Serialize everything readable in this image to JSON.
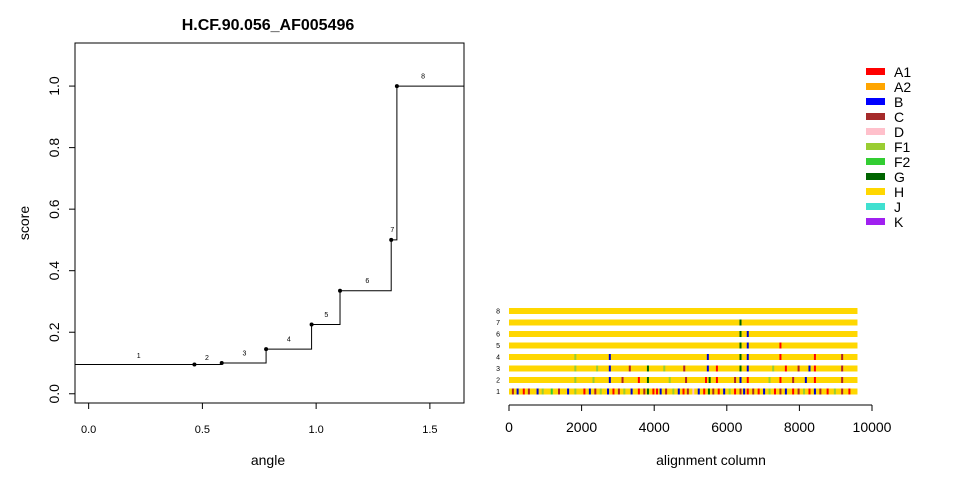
{
  "chart_data": [
    {
      "type": "line",
      "title": "H.CF.90.056_AF005496",
      "xlabel": "angle",
      "ylabel": "score",
      "xlim": [
        -0.06,
        1.65
      ],
      "ylim": [
        -0.03,
        1.14
      ],
      "x_ticks": [
        0.0,
        0.5,
        1.0,
        1.5
      ],
      "x_tick_labels": [
        "0.0",
        "0.5",
        "1.0",
        "1.5"
      ],
      "y_ticks": [
        0.0,
        0.2,
        0.4,
        0.6,
        0.8,
        1.0
      ],
      "y_tick_labels": [
        "0.0",
        "0.2",
        "0.4",
        "0.6",
        "0.8",
        "1.0"
      ],
      "grid": false,
      "points": [
        {
          "label": "1",
          "x": 0.0,
          "y": 0.095,
          "label_x": 0.22,
          "label_y": 0.116
        },
        {
          "label": "2",
          "x": 0.465,
          "y": 0.095,
          "label_x": 0.52,
          "label_y": 0.11
        },
        {
          "label": "3",
          "x": 0.585,
          "y": 0.1,
          "label_x": 0.685,
          "label_y": 0.125
        },
        {
          "label": "4",
          "x": 0.78,
          "y": 0.145,
          "label_x": 0.88,
          "label_y": 0.17
        },
        {
          "label": "5",
          "x": 0.98,
          "y": 0.225,
          "label_x": 1.045,
          "label_y": 0.25
        },
        {
          "label": "6",
          "x": 1.105,
          "y": 0.335,
          "label_x": 1.225,
          "label_y": 0.36
        },
        {
          "label": "7",
          "x": 1.33,
          "y": 0.5,
          "label_x": 1.335,
          "label_y": 0.525
        },
        {
          "label": "8",
          "x": 1.355,
          "y": 1.0,
          "label_x": 1.47,
          "label_y": 1.025
        }
      ],
      "marked_points": [
        2,
        3,
        4,
        5,
        6,
        7,
        8
      ],
      "x_end": 1.65
    },
    {
      "type": "bar",
      "xlabel": "alignment column",
      "xlim": [
        0,
        10000
      ],
      "x_ticks": [
        0,
        2000,
        4000,
        6000,
        8000,
        10000
      ],
      "x_tick_labels": [
        "0",
        "2000",
        "4000",
        "6000",
        "8000",
        "10000"
      ],
      "alignment_length": 9600,
      "base_color": "#FFD700",
      "rows": [
        {
          "label": "1",
          "marks": [
            [
              80,
              "#B22222"
            ],
            [
              210,
              "#0000CD"
            ],
            [
              380,
              "#FF0000"
            ],
            [
              520,
              "#B22222"
            ],
            [
              760,
              "#0000CD"
            ],
            [
              900,
              "#9ACD32"
            ],
            [
              1150,
              "#32CD32"
            ],
            [
              1350,
              "#B22222"
            ],
            [
              1600,
              "#0000CD"
            ],
            [
              1800,
              "#9ACD32"
            ],
            [
              2050,
              "#FF0000"
            ],
            [
              2200,
              "#0000CD"
            ],
            [
              2350,
              "#B22222"
            ],
            [
              2500,
              "#9ACD32"
            ],
            [
              2700,
              "#0000CD"
            ],
            [
              2850,
              "#FF0000"
            ],
            [
              3000,
              "#B22222"
            ],
            [
              3150,
              "#9ACD32"
            ],
            [
              3350,
              "#0000CD"
            ],
            [
              3550,
              "#FF0000"
            ],
            [
              3700,
              "#B22222"
            ],
            [
              3800,
              "#006400"
            ],
            [
              3950,
              "#FF0000"
            ],
            [
              4050,
              "#FF0000"
            ],
            [
              4150,
              "#0000CD"
            ],
            [
              4300,
              "#B22222"
            ],
            [
              4500,
              "#9ACD32"
            ],
            [
              4650,
              "#0000CD"
            ],
            [
              4780,
              "#FF0000"
            ],
            [
              4900,
              "#B22222"
            ],
            [
              5050,
              "#FFC0CB"
            ],
            [
              5200,
              "#0000CD"
            ],
            [
              5350,
              "#FF0000"
            ],
            [
              5480,
              "#006400"
            ],
            [
              5600,
              "#B22222"
            ],
            [
              5750,
              "#FF0000"
            ],
            [
              5900,
              "#0000CD"
            ],
            [
              6050,
              "#9ACD32"
            ],
            [
              6200,
              "#FF0000"
            ],
            [
              6350,
              "#B22222"
            ],
            [
              6450,
              "#0000CD"
            ],
            [
              6550,
              "#FF0000"
            ],
            [
              6700,
              "#B22222"
            ],
            [
              6850,
              "#FF0000"
            ],
            [
              7000,
              "#0000CD"
            ],
            [
              7150,
              "#9ACD32"
            ],
            [
              7300,
              "#FF0000"
            ],
            [
              7450,
              "#B22222"
            ],
            [
              7600,
              "#0000CD"
            ],
            [
              7800,
              "#FF0000"
            ],
            [
              7950,
              "#B22222"
            ],
            [
              8100,
              "#9ACD32"
            ],
            [
              8250,
              "#FF0000"
            ],
            [
              8400,
              "#0000CD"
            ],
            [
              8550,
              "#B22222"
            ],
            [
              8750,
              "#FF0000"
            ],
            [
              8950,
              "#9ACD32"
            ],
            [
              9150,
              "#B22222"
            ],
            [
              9350,
              "#FF0000"
            ]
          ]
        },
        {
          "label": "2",
          "marks": [
            [
              1800,
              "#9ACD32"
            ],
            [
              2300,
              "#9ACD32"
            ],
            [
              2750,
              "#0000CD"
            ],
            [
              3100,
              "#B22222"
            ],
            [
              3550,
              "#FF0000"
            ],
            [
              3800,
              "#006400"
            ],
            [
              4400,
              "#9ACD32"
            ],
            [
              4850,
              "#B22222"
            ],
            [
              5400,
              "#FF0000"
            ],
            [
              5500,
              "#006400"
            ],
            [
              5700,
              "#FF0000"
            ],
            [
              6200,
              "#B22222"
            ],
            [
              6350,
              "#0000CD"
            ],
            [
              6550,
              "#FF0000"
            ],
            [
              7150,
              "#9ACD32"
            ],
            [
              7450,
              "#FF0000"
            ],
            [
              7800,
              "#B22222"
            ],
            [
              8150,
              "#0000CD"
            ],
            [
              8400,
              "#FF0000"
            ],
            [
              9150,
              "#B22222"
            ]
          ]
        },
        {
          "label": "3",
          "marks": [
            [
              1800,
              "#9ACD32"
            ],
            [
              2400,
              "#9ACD32"
            ],
            [
              2750,
              "#0000CD"
            ],
            [
              3300,
              "#B22222"
            ],
            [
              3800,
              "#006400"
            ],
            [
              4250,
              "#9ACD32"
            ],
            [
              4800,
              "#B22222"
            ],
            [
              5450,
              "#0000CD"
            ],
            [
              5700,
              "#FF0000"
            ],
            [
              6350,
              "#006400"
            ],
            [
              6550,
              "#0000CD"
            ],
            [
              7250,
              "#9ACD32"
            ],
            [
              7600,
              "#FF0000"
            ],
            [
              7950,
              "#B22222"
            ],
            [
              8250,
              "#0000CD"
            ],
            [
              8400,
              "#FF0000"
            ],
            [
              9150,
              "#B22222"
            ]
          ]
        },
        {
          "label": "4",
          "marks": [
            [
              1800,
              "#9ACD32"
            ],
            [
              2750,
              "#0000CD"
            ],
            [
              5450,
              "#0000CD"
            ],
            [
              6350,
              "#006400"
            ],
            [
              6550,
              "#0000CD"
            ],
            [
              7450,
              "#FF0000"
            ],
            [
              8400,
              "#FF0000"
            ],
            [
              9150,
              "#B22222"
            ]
          ]
        },
        {
          "label": "5",
          "marks": [
            [
              6350,
              "#006400"
            ],
            [
              6550,
              "#0000CD"
            ],
            [
              7450,
              "#FF0000"
            ]
          ]
        },
        {
          "label": "6",
          "marks": [
            [
              6350,
              "#006400"
            ],
            [
              6550,
              "#0000CD"
            ]
          ]
        },
        {
          "label": "7",
          "marks": [
            [
              6350,
              "#006400"
            ]
          ]
        },
        {
          "label": "8",
          "marks": []
        }
      ],
      "legend": {
        "placement": "top-right",
        "items": [
          {
            "label": "A1",
            "color": "#FF0000"
          },
          {
            "label": "A2",
            "color": "#FFA500"
          },
          {
            "label": "B",
            "color": "#0000FF"
          },
          {
            "label": "C",
            "color": "#A52A2A"
          },
          {
            "label": "D",
            "color": "#FFC0CB"
          },
          {
            "label": "F1",
            "color": "#9ACD32"
          },
          {
            "label": "F2",
            "color": "#32CD32"
          },
          {
            "label": "G",
            "color": "#006400"
          },
          {
            "label": "H",
            "color": "#FFD700"
          },
          {
            "label": "J",
            "color": "#40E0D0"
          },
          {
            "label": "K",
            "color": "#A020F0"
          }
        ]
      }
    }
  ]
}
